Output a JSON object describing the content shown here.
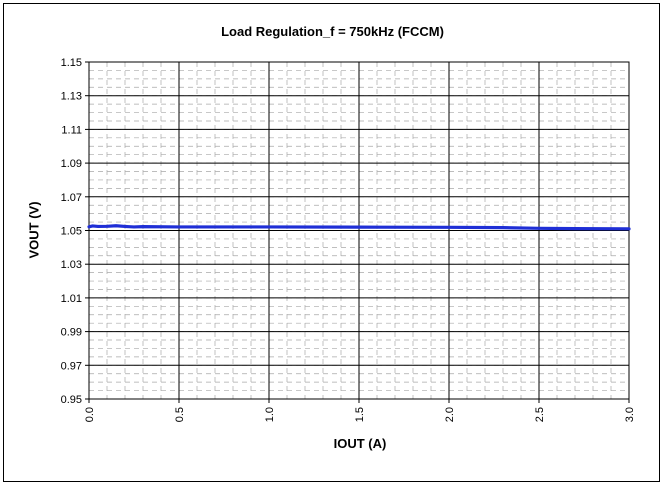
{
  "chart_data": {
    "type": "line",
    "title": "Load Regulation_f = 750kHz (FCCM)",
    "xlabel": "IOUT (A)",
    "ylabel": "VOUT (V)",
    "xlim": [
      0.0,
      3.0
    ],
    "ylim": [
      0.95,
      1.15
    ],
    "x_ticks": [
      "0.0",
      "0.5",
      "1.0",
      "1.5",
      "2.0",
      "2.5",
      "3.0"
    ],
    "y_ticks": [
      "1.15",
      "1.13",
      "1.11",
      "1.09",
      "1.07",
      "1.05",
      "1.03",
      "1.01",
      "0.99",
      "0.97",
      "0.95"
    ],
    "grid": true,
    "legend": "none",
    "series": [
      {
        "color": "#1f2fd6",
        "x": [
          0.0,
          0.02,
          0.05,
          0.1,
          0.15,
          0.2,
          0.25,
          0.3,
          0.5,
          1.0,
          1.5,
          2.0,
          2.3,
          2.5,
          2.7,
          3.0
        ],
        "y": [
          1.0522,
          1.0527,
          1.0524,
          1.0525,
          1.0528,
          1.0524,
          1.0521,
          1.0523,
          1.0521,
          1.0521,
          1.052,
          1.0519,
          1.0517,
          1.0513,
          1.0511,
          1.051
        ]
      }
    ]
  }
}
